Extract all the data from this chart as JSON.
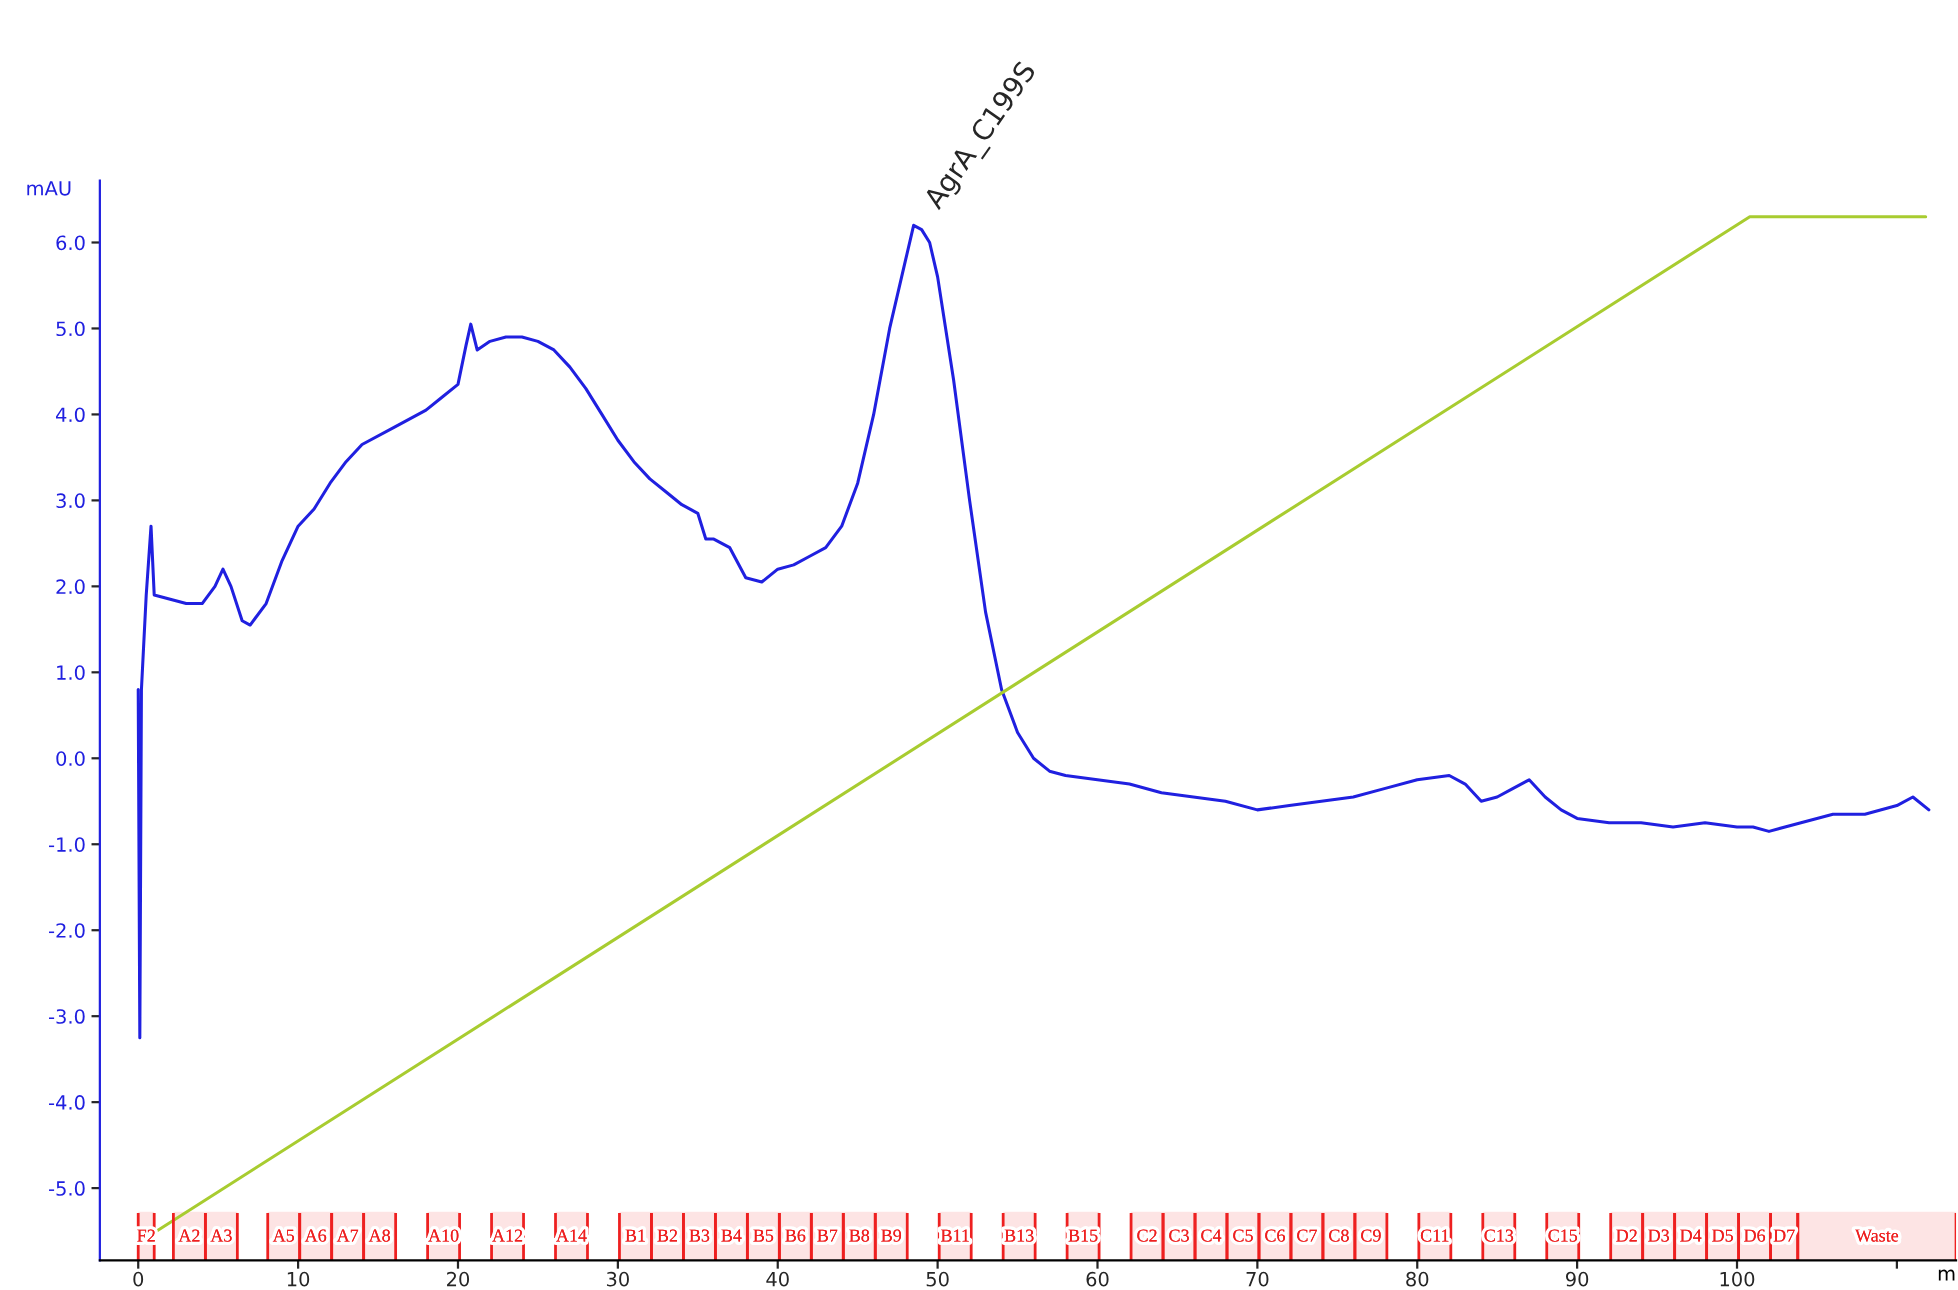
{
  "chart_data": {
    "type": "line",
    "xlabel": "m",
    "ylabel": "mAU",
    "xlim": [
      -2.4,
      113.7
    ],
    "xticks": [
      0,
      10,
      20,
      30,
      40,
      50,
      60,
      70,
      80,
      90,
      100,
      {
        "value": 110,
        "label": null
      }
    ],
    "ylim": [
      -5.84,
      6.72
    ],
    "yticks": [
      {
        "value": -5,
        "label": "-5.0"
      },
      {
        "value": -4,
        "label": "-4.0"
      },
      {
        "value": -3,
        "label": "-3.0"
      },
      {
        "value": -2,
        "label": "-2.0"
      },
      {
        "value": -1,
        "label": "-1.0"
      },
      {
        "value": 0,
        "label": "0.0"
      },
      {
        "value": 1,
        "label": "1.0"
      },
      {
        "value": 2,
        "label": "2.0"
      },
      {
        "value": 3,
        "label": "3.0"
      },
      {
        "value": 4,
        "label": "4.0"
      },
      {
        "value": 5,
        "label": "5.0"
      },
      {
        "value": 6,
        "label": "6.0"
      }
    ],
    "grid": false,
    "legend": false,
    "series": [
      {
        "color": "#2020e0",
        "x": [
          0.0,
          0.1,
          0.2,
          0.5,
          0.8,
          1.0,
          2,
          3,
          4,
          4.8,
          5.3,
          5.8,
          6.5,
          7.0,
          8,
          9,
          10,
          11,
          12,
          13,
          14,
          16,
          18,
          19,
          20,
          20.5,
          20.8,
          21.2,
          22,
          23,
          24,
          25,
          26,
          27,
          28,
          29,
          30,
          31,
          32,
          33,
          34,
          35,
          35.5,
          36,
          37,
          38,
          39,
          40,
          41,
          42,
          43,
          44,
          45,
          46,
          47,
          48,
          48.5,
          49,
          49.5,
          50,
          51,
          52,
          53,
          54,
          55,
          56,
          57,
          58,
          60,
          62,
          64,
          66,
          68,
          70,
          72,
          74,
          76,
          78,
          80,
          82,
          83,
          84,
          85,
          86,
          87,
          88,
          89,
          90,
          92,
          94,
          96,
          98,
          100,
          101,
          102,
          104,
          106,
          108,
          110,
          111,
          112
        ],
        "values": [
          0.8,
          -3.25,
          0.8,
          1.9,
          2.7,
          1.9,
          1.85,
          1.8,
          1.8,
          2.0,
          2.2,
          2.0,
          1.6,
          1.55,
          1.8,
          2.3,
          2.7,
          2.9,
          3.2,
          3.45,
          3.65,
          3.85,
          4.05,
          4.2,
          4.35,
          4.8,
          5.05,
          4.75,
          4.85,
          4.9,
          4.9,
          4.85,
          4.75,
          4.55,
          4.3,
          4.0,
          3.7,
          3.45,
          3.25,
          3.1,
          2.95,
          2.85,
          2.55,
          2.55,
          2.45,
          2.1,
          2.05,
          2.2,
          2.25,
          2.35,
          2.45,
          2.7,
          3.2,
          4.0,
          5.0,
          5.8,
          6.2,
          6.15,
          6.0,
          5.6,
          4.4,
          3.0,
          1.7,
          0.8,
          0.3,
          0.0,
          -0.15,
          -0.2,
          -0.25,
          -0.3,
          -0.4,
          -0.45,
          -0.5,
          -0.6,
          -0.55,
          -0.5,
          -0.45,
          -0.35,
          -0.25,
          -0.2,
          -0.3,
          -0.5,
          -0.45,
          -0.35,
          -0.25,
          -0.45,
          -0.6,
          -0.7,
          -0.75,
          -0.75,
          -0.8,
          -0.75,
          -0.8,
          -0.8,
          -0.85,
          -0.75,
          -0.65,
          -0.65,
          -0.55,
          -0.45,
          -0.6
        ]
      },
      {
        "color": "#a8cc30",
        "x": [
          0.3,
          100.8,
          111.8
        ],
        "values": [
          -5.6,
          6.3,
          6.3
        ]
      }
    ],
    "annotations": [
      {
        "text": "AgrA_C199S",
        "x": 48.5,
        "y": 6.2
      }
    ],
    "bands": [
      {
        "axis": "x",
        "from": 0,
        "to": 1,
        "label": "F2",
        "color": "#ee2020"
      },
      {
        "axis": "x",
        "from": 2.2,
        "to": 4.2,
        "label": "A2",
        "color": "#ee2020"
      },
      {
        "axis": "x",
        "from": 4.2,
        "to": 6.2,
        "label": "A3",
        "color": "#ee2020"
      },
      {
        "axis": "x",
        "from": 8.1,
        "to": 10.1,
        "label": "A5",
        "color": "#ee2020"
      },
      {
        "axis": "x",
        "from": 10.1,
        "to": 12.1,
        "label": "A6",
        "color": "#ee2020"
      },
      {
        "axis": "x",
        "from": 12.1,
        "to": 14.1,
        "label": "A7",
        "color": "#ee2020"
      },
      {
        "axis": "x",
        "from": 14.1,
        "to": 16.1,
        "label": "A8",
        "color": "#ee2020"
      },
      {
        "axis": "x",
        "from": 18.1,
        "to": 20.1,
        "label": "A10",
        "color": "#ee2020"
      },
      {
        "axis": "x",
        "from": 22.1,
        "to": 24.1,
        "label": "A12",
        "color": "#ee2020"
      },
      {
        "axis": "x",
        "from": 26.1,
        "to": 28.1,
        "label": "A14",
        "color": "#ee2020"
      },
      {
        "axis": "x",
        "from": 30.1,
        "to": 32.1,
        "label": "B1",
        "color": "#ee2020"
      },
      {
        "axis": "x",
        "from": 32.1,
        "to": 34.1,
        "label": "B2",
        "color": "#ee2020"
      },
      {
        "axis": "x",
        "from": 34.1,
        "to": 36.1,
        "label": "B3",
        "color": "#ee2020"
      },
      {
        "axis": "x",
        "from": 36.1,
        "to": 38.1,
        "label": "B4",
        "color": "#ee2020"
      },
      {
        "axis": "x",
        "from": 38.1,
        "to": 40.1,
        "label": "B5",
        "color": "#ee2020"
      },
      {
        "axis": "x",
        "from": 40.1,
        "to": 42.1,
        "label": "B6",
        "color": "#ee2020"
      },
      {
        "axis": "x",
        "from": 42.1,
        "to": 44.1,
        "label": "B7",
        "color": "#ee2020"
      },
      {
        "axis": "x",
        "from": 44.1,
        "to": 46.1,
        "label": "B8",
        "color": "#ee2020"
      },
      {
        "axis": "x",
        "from": 46.1,
        "to": 48.1,
        "label": "B9",
        "color": "#ee2020"
      },
      {
        "axis": "x",
        "from": 50.1,
        "to": 52.1,
        "label": "B11",
        "color": "#ee2020"
      },
      {
        "axis": "x",
        "from": 54.1,
        "to": 56.1,
        "label": "B13",
        "color": "#ee2020"
      },
      {
        "axis": "x",
        "from": 58.1,
        "to": 60.1,
        "label": "B15",
        "color": "#ee2020"
      },
      {
        "axis": "x",
        "from": 62.1,
        "to": 64.1,
        "label": "C2",
        "color": "#ee2020"
      },
      {
        "axis": "x",
        "from": 64.1,
        "to": 66.1,
        "label": "C3",
        "color": "#ee2020"
      },
      {
        "axis": "x",
        "from": 66.1,
        "to": 68.1,
        "label": "C4",
        "color": "#ee2020"
      },
      {
        "axis": "x",
        "from": 68.1,
        "to": 70.1,
        "label": "C5",
        "color": "#ee2020"
      },
      {
        "axis": "x",
        "from": 70.1,
        "to": 72.1,
        "label": "C6",
        "color": "#ee2020"
      },
      {
        "axis": "x",
        "from": 72.1,
        "to": 74.1,
        "label": "C7",
        "color": "#ee2020"
      },
      {
        "axis": "x",
        "from": 74.1,
        "to": 76.1,
        "label": "C8",
        "color": "#ee2020"
      },
      {
        "axis": "x",
        "from": 76.1,
        "to": 78.1,
        "label": "C9",
        "color": "#ee2020"
      },
      {
        "axis": "x",
        "from": 80.1,
        "to": 82.1,
        "label": "C11",
        "color": "#ee2020"
      },
      {
        "axis": "x",
        "from": 84.1,
        "to": 86.1,
        "label": "C13",
        "color": "#ee2020"
      },
      {
        "axis": "x",
        "from": 88.1,
        "to": 90.1,
        "label": "C15",
        "color": "#ee2020"
      },
      {
        "axis": "x",
        "from": 92.1,
        "to": 94.1,
        "label": "D2",
        "color": "#ee2020"
      },
      {
        "axis": "x",
        "from": 94.1,
        "to": 96.1,
        "label": "D3",
        "color": "#ee2020"
      },
      {
        "axis": "x",
        "from": 96.1,
        "to": 98.1,
        "label": "D4",
        "color": "#ee2020"
      },
      {
        "axis": "x",
        "from": 98.1,
        "to": 100.1,
        "label": "D5",
        "color": "#ee2020"
      },
      {
        "axis": "x",
        "from": 100.1,
        "to": 102.1,
        "label": "D6",
        "color": "#ee2020"
      },
      {
        "axis": "x",
        "from": 102.1,
        "to": 103.8,
        "label": "D7",
        "color": "#ee2020"
      },
      {
        "axis": "x",
        "from": 103.8,
        "to": 113.7,
        "label": "Waste",
        "color": "#ee2020"
      }
    ]
  }
}
